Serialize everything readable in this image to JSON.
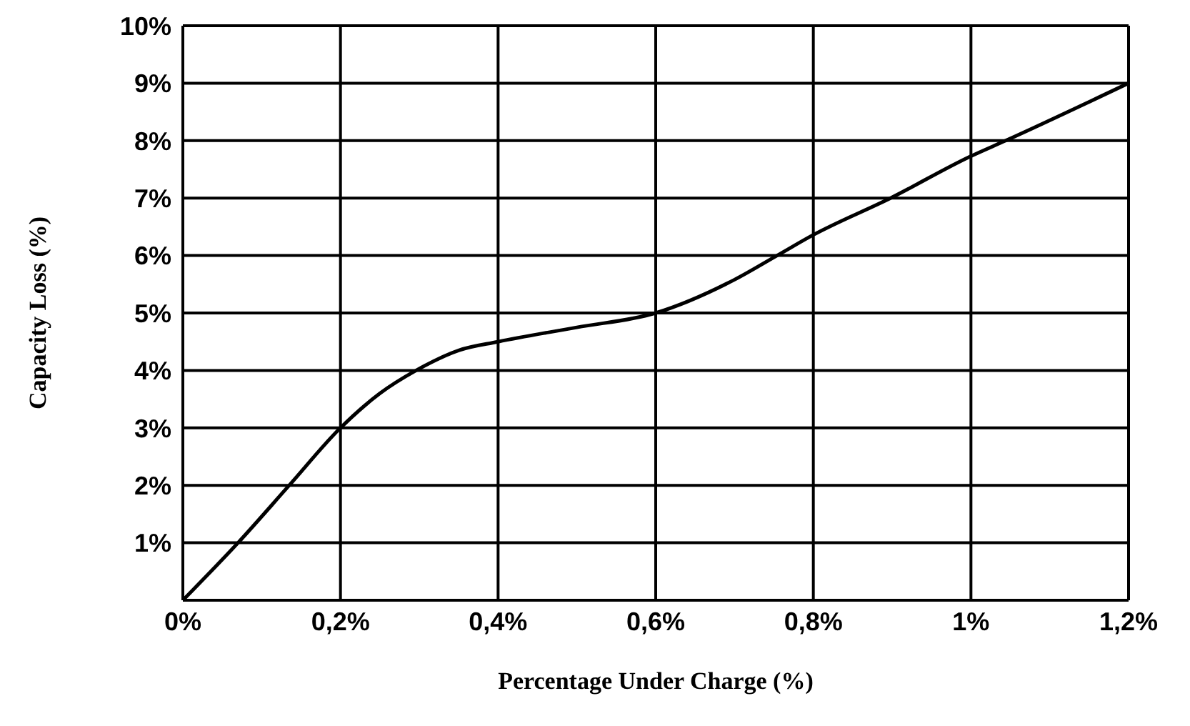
{
  "chart_data": {
    "type": "line",
    "xlabel": "Percentage Under Charge (%)",
    "ylabel": "Capacity Loss (%)",
    "series": [
      {
        "color": "#000000",
        "x": [
          0,
          0.07,
          0.135,
          0.2,
          0.25,
          0.296,
          0.35,
          0.4,
          0.5,
          0.6,
          0.7,
          0.754,
          0.8,
          0.898,
          1.0,
          1.044,
          1.2
        ],
        "values": [
          0,
          1,
          2,
          3,
          3.6,
          4,
          4.35,
          4.5,
          4.75,
          5,
          5.58,
          6,
          6.36,
          7,
          7.73,
          8,
          9
        ]
      }
    ],
    "xlim": [
      0,
      1.2
    ],
    "ylim": [
      0,
      10
    ],
    "xticks": [
      {
        "value": 0,
        "label": "0%"
      },
      {
        "value": 0.2,
        "label": "0,2%"
      },
      {
        "value": 0.4,
        "label": "0,4%"
      },
      {
        "value": 0.6,
        "label": "0,6%"
      },
      {
        "value": 0.8,
        "label": "0,8%"
      },
      {
        "value": 1,
        "label": "1%"
      },
      {
        "value": 1.2,
        "label": "1,2%"
      }
    ],
    "yticks": [
      {
        "value": 0,
        "label": null
      },
      {
        "value": 1,
        "label": "1%"
      },
      {
        "value": 2,
        "label": "2%"
      },
      {
        "value": 3,
        "label": "3%"
      },
      {
        "value": 4,
        "label": "4%"
      },
      {
        "value": 5,
        "label": "5%"
      },
      {
        "value": 6,
        "label": "6%"
      },
      {
        "value": 7,
        "label": "7%"
      },
      {
        "value": 8,
        "label": "8%"
      },
      {
        "value": 9,
        "label": "9%"
      },
      {
        "value": 10,
        "label": "10%"
      }
    ],
    "grid": true,
    "marker": "none",
    "line_style": "solid"
  }
}
